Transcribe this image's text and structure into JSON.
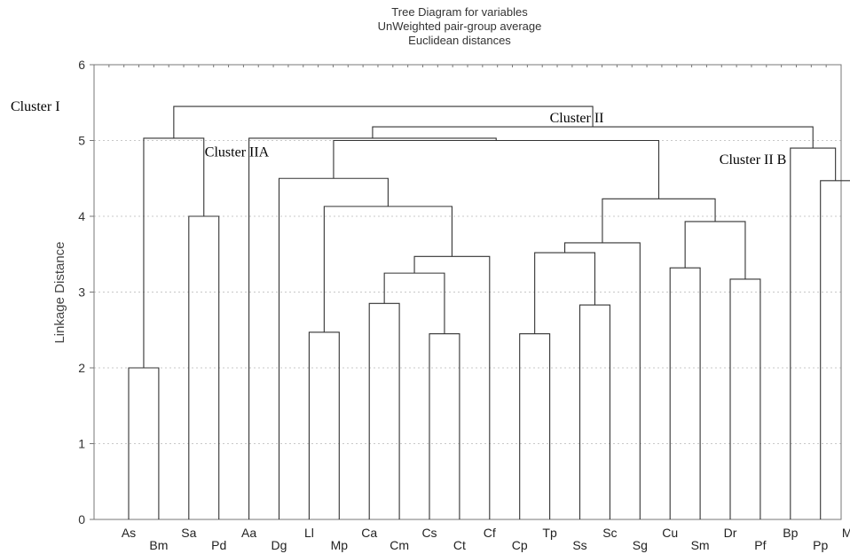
{
  "chart_data": {
    "type": "dendrogram",
    "title_lines": [
      "Tree Diagram for variables",
      "UnWeighted pair-group average",
      "Euclidean distances"
    ],
    "xlabel": "",
    "ylabel": "Linkage Distance",
    "ylim": [
      0,
      6
    ],
    "yticks": [
      0,
      1,
      2,
      3,
      4,
      5,
      6
    ],
    "grid": true,
    "leaves": [
      "As",
      "Bm",
      "Sa",
      "Pd",
      "Aa",
      "Dg",
      "Ll",
      "Mp",
      "Ca",
      "Cm",
      "Cs",
      "Ct",
      "Cf",
      "Cp",
      "Tp",
      "Ss",
      "Sc",
      "Sg",
      "Cu",
      "Sm",
      "Dr",
      "Pf",
      "Bp",
      "Pp",
      "Mo"
    ],
    "merges": [
      {
        "id": "m1",
        "left": "As",
        "right": "Bm",
        "height": 2.0
      },
      {
        "id": "m2",
        "left": "Sa",
        "right": "Pd",
        "height": 4.0
      },
      {
        "id": "m3",
        "left": "m1",
        "right": "m2",
        "height": 5.03
      },
      {
        "id": "m4",
        "left": "Ll",
        "right": "Mp",
        "height": 2.47
      },
      {
        "id": "m5",
        "left": "Ca",
        "right": "Cm",
        "height": 2.85
      },
      {
        "id": "m6",
        "left": "Cs",
        "right": "Ct",
        "height": 2.45
      },
      {
        "id": "m7",
        "left": "m5",
        "right": "m6",
        "height": 3.25
      },
      {
        "id": "m8",
        "left": "m7",
        "right": "Cf",
        "height": 3.47
      },
      {
        "id": "m9",
        "left": "m4",
        "right": "m8",
        "height": 4.13
      },
      {
        "id": "m10",
        "left": "Dg",
        "right": "m9",
        "height": 4.5
      },
      {
        "id": "m11",
        "left": "Cp",
        "right": "Tp",
        "height": 2.45
      },
      {
        "id": "m12",
        "left": "Ss",
        "right": "Sc",
        "height": 2.83
      },
      {
        "id": "m13",
        "left": "m11",
        "right": "m12",
        "height": 3.52
      },
      {
        "id": "m14",
        "left": "m13",
        "right": "Sg",
        "height": 3.65
      },
      {
        "id": "m15",
        "left": "Cu",
        "right": "Sm",
        "height": 3.32
      },
      {
        "id": "m16",
        "left": "Dr",
        "right": "Pf",
        "height": 3.17
      },
      {
        "id": "m17",
        "left": "m15",
        "right": "m16",
        "height": 3.93
      },
      {
        "id": "m18",
        "left": "m14",
        "right": "m17",
        "height": 4.23
      },
      {
        "id": "m19",
        "left": "m10",
        "right": "m18",
        "height": 5.0
      },
      {
        "id": "m20",
        "left": "Aa",
        "right": "m19",
        "height": 5.03
      },
      {
        "id": "m21",
        "left": "Pp",
        "right": "Mo",
        "height": 4.47
      },
      {
        "id": "m22",
        "left": "Bp",
        "right": "m21",
        "height": 4.9
      },
      {
        "id": "m23",
        "left": "m20",
        "right": "m22",
        "height": 5.18
      },
      {
        "id": "m24",
        "left": "m3",
        "right": "m23",
        "height": 5.45
      }
    ],
    "annotations": [
      {
        "text": "Cluster I",
        "x_leaf": "As",
        "y": 5.45
      },
      {
        "text": "Cluster II",
        "x_leaf": "Tp",
        "y": 5.3
      },
      {
        "text": "Cluster IIA",
        "x_leaf": "Sa",
        "y": 4.85
      },
      {
        "text": "Cluster II B",
        "x_leaf": "Bp",
        "y": 4.75
      }
    ]
  }
}
